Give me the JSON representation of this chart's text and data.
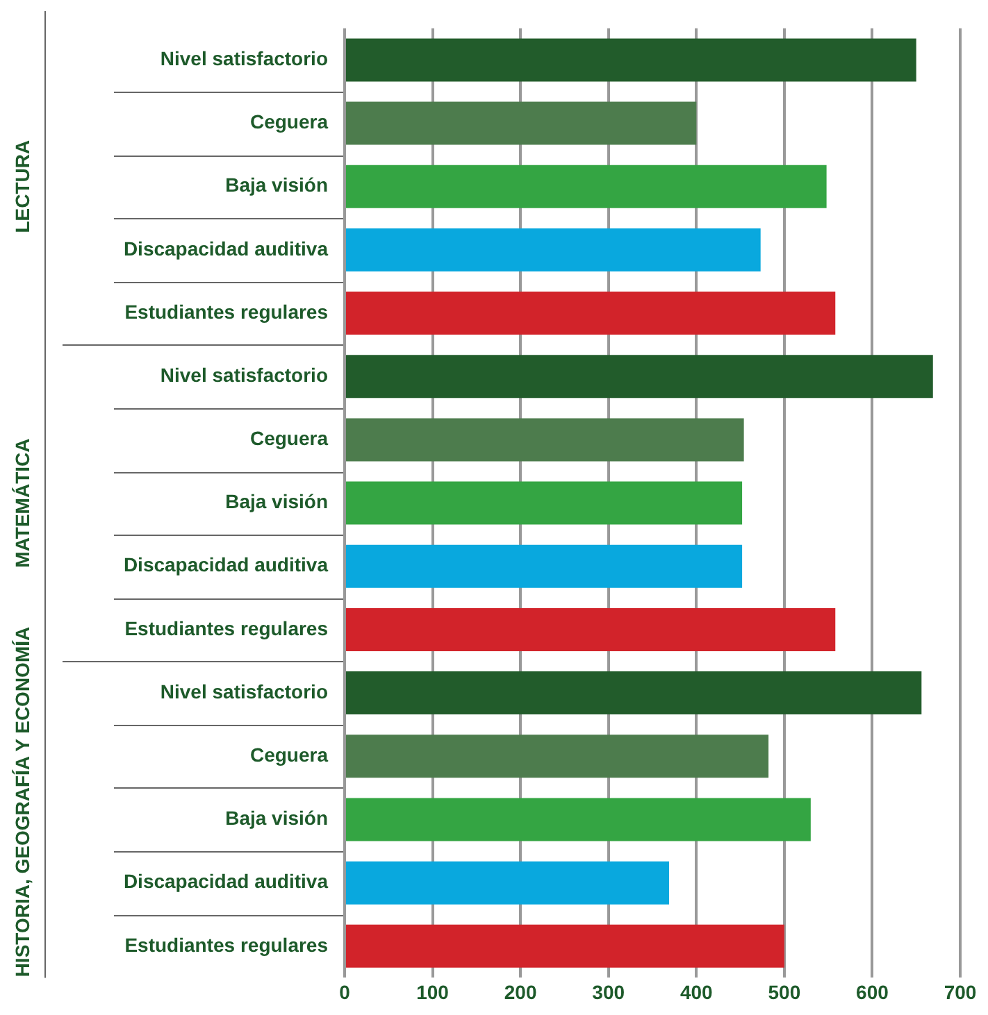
{
  "chart_data": {
    "type": "bar",
    "orientation": "horizontal",
    "categories": [
      "Nivel satisfactorio",
      "Ceguera",
      "Baja visión",
      "Discapacidad auditiva",
      "Estudiantes regulares",
      "Nivel satisfactorio",
      "Ceguera",
      "Baja visión",
      "Discapacidad auditiva",
      "Estudiantes regulares",
      "Nivel satisfactorio",
      "Ceguera",
      "Baja visión",
      "Discapacidad auditiva",
      "Estudiantes regulares"
    ],
    "values": [
      650,
      400,
      548,
      473,
      558,
      669,
      454,
      452,
      452,
      558,
      656,
      482,
      530,
      369,
      500
    ],
    "colors": [
      "#225c2b",
      "#4d7c4d",
      "#34a543",
      "#09a8de",
      "#d2232a",
      "#225c2b",
      "#4d7c4d",
      "#34a543",
      "#09a8de",
      "#d2232a",
      "#225c2b",
      "#4d7c4d",
      "#34a543",
      "#09a8de",
      "#d2232a"
    ],
    "xlim": [
      0,
      700
    ],
    "xticks": [
      0,
      100,
      200,
      300,
      400,
      500,
      600,
      700
    ],
    "grid": "x",
    "legend": false,
    "annotations": [
      "LECTURA",
      "MATEMÁTICA",
      "HISTORIA, GEOGRAFÍA Y ECONOMÍA"
    ]
  }
}
